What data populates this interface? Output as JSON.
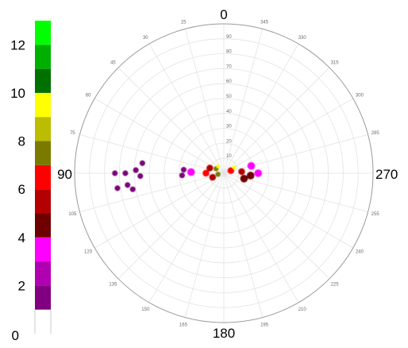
{
  "chart_data": {
    "type": "heatmap",
    "projection": "polar",
    "title": "",
    "angle_direction": "counterclockwise",
    "zero_location": "top",
    "cardinal_labels": [
      "0",
      "90",
      "180",
      "270"
    ],
    "angle_labels": [
      "15",
      "30",
      "45",
      "60",
      "75",
      "105",
      "120",
      "135",
      "150",
      "165",
      "195",
      "210",
      "225",
      "240",
      "255",
      "285",
      "300",
      "315",
      "330",
      "345"
    ],
    "angle_values": [
      15,
      30,
      45,
      60,
      75,
      105,
      120,
      135,
      150,
      165,
      195,
      210,
      225,
      240,
      255,
      285,
      300,
      315,
      330,
      345
    ],
    "radial_labels": [
      "10",
      "20",
      "30",
      "40",
      "50",
      "60",
      "70",
      "80",
      "90"
    ],
    "radial_values": [
      10,
      20,
      30,
      40,
      50,
      60,
      70,
      80,
      90
    ],
    "radial_max": 100,
    "grid": true,
    "colorbar": {
      "tick_labels": [
        "0",
        "2",
        "4",
        "6",
        "8",
        "10",
        "12"
      ],
      "tick_values": [
        0,
        2,
        4,
        6,
        8,
        10,
        12
      ],
      "range": [
        0,
        13
      ],
      "bins": [
        {
          "from": 1,
          "to": 2,
          "color": "#800080"
        },
        {
          "from": 2,
          "to": 3,
          "color": "#b000b0"
        },
        {
          "from": 3,
          "to": 4,
          "color": "#ff00ff"
        },
        {
          "from": 4,
          "to": 5,
          "color": "#6e0000"
        },
        {
          "from": 5,
          "to": 6,
          "color": "#b40000"
        },
        {
          "from": 6,
          "to": 7,
          "color": "#ff0000"
        },
        {
          "from": 7,
          "to": 8,
          "color": "#7a7a00"
        },
        {
          "from": 8,
          "to": 9,
          "color": "#bcbc00"
        },
        {
          "from": 9,
          "to": 10,
          "color": "#ffff00"
        },
        {
          "from": 10,
          "to": 11,
          "color": "#007000"
        },
        {
          "from": 11,
          "to": 12,
          "color": "#00b000"
        },
        {
          "from": 12,
          "to": 13,
          "color": "#00ff00"
        }
      ]
    },
    "clusters": [
      {
        "angle": 90,
        "r": 73,
        "value": 1.5
      },
      {
        "angle": 98,
        "r": 72,
        "value": 1.5
      },
      {
        "angle": 90,
        "r": 66,
        "value": 1.5
      },
      {
        "angle": 97,
        "r": 65,
        "value": 1.5
      },
      {
        "angle": 88,
        "r": 59,
        "value": 1.5
      },
      {
        "angle": 92,
        "r": 56,
        "value": 1.5
      },
      {
        "angle": 83,
        "r": 55,
        "value": 1.5
      },
      {
        "angle": 100,
        "r": 62,
        "value": 1.5
      },
      {
        "angle": 93,
        "r": 28,
        "value": 1.5
      },
      {
        "angle": 85,
        "r": 27,
        "value": 1.5
      },
      {
        "angle": 88,
        "r": 22,
        "value": 3.5
      },
      {
        "angle": 70,
        "r": 10,
        "value": 5.5
      },
      {
        "angle": 110,
        "r": 8,
        "value": 5.5
      },
      {
        "angle": 90,
        "r": 12,
        "value": 6.5
      },
      {
        "angle": 60,
        "r": 6,
        "value": 7.5
      },
      {
        "angle": 100,
        "r": 4,
        "value": 7.5
      },
      {
        "angle": 290,
        "r": 5,
        "value": 6.5
      },
      {
        "angle": 275,
        "r": 12,
        "value": 5.5
      },
      {
        "angle": 265,
        "r": 18,
        "value": 4.5
      },
      {
        "angle": 270,
        "r": 23,
        "value": 3.5
      },
      {
        "angle": 255,
        "r": 14,
        "value": 4.5
      },
      {
        "angle": 285,
        "r": 19,
        "value": 3.5
      },
      {
        "angle": 40,
        "r": 6,
        "value": 9.5
      },
      {
        "angle": 300,
        "r": 8,
        "value": 9.5
      }
    ]
  }
}
